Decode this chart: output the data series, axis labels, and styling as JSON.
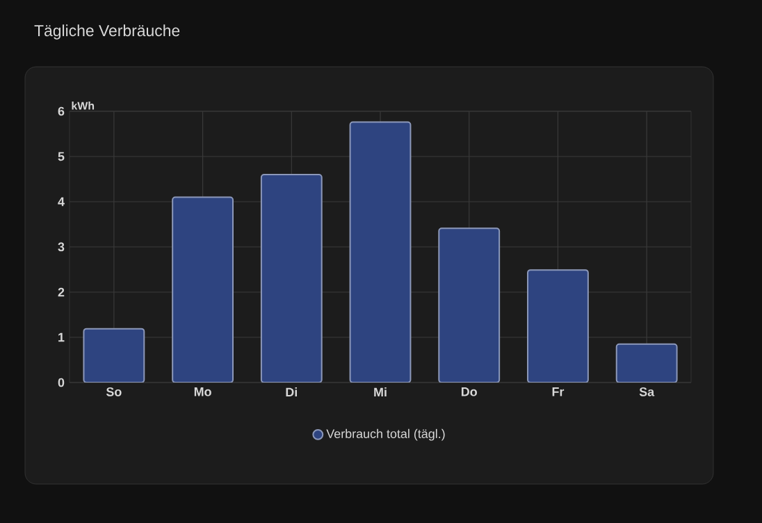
{
  "chart_data": {
    "type": "bar",
    "title": "Tägliche Verbräuche",
    "ylabel": "kWh",
    "categories": [
      "So",
      "Mo",
      "Di",
      "Mi",
      "Do",
      "Fr",
      "Sa"
    ],
    "series": [
      {
        "name": "Verbrauch total (tägl.)",
        "color": "#2e4480",
        "values": [
          1.19,
          4.1,
          4.6,
          5.76,
          3.41,
          2.49,
          0.85
        ]
      }
    ],
    "ylim": [
      0,
      6
    ],
    "yticks": [
      0,
      1,
      2,
      3,
      4,
      5,
      6
    ],
    "grid": true,
    "legend": "bottom"
  }
}
